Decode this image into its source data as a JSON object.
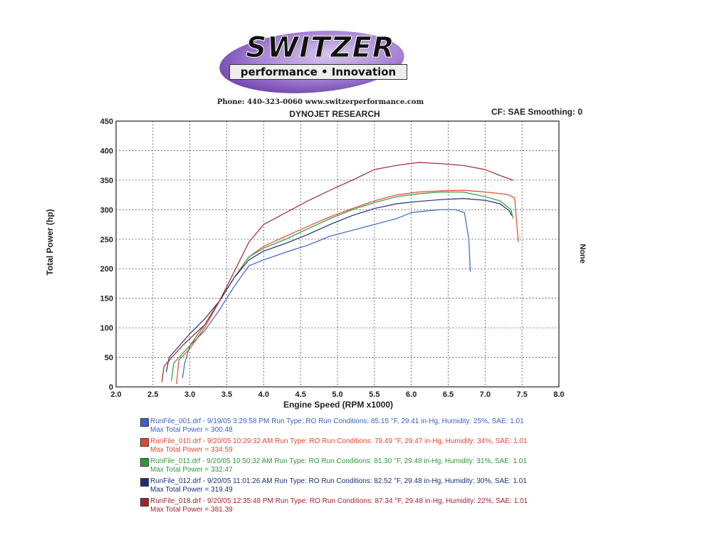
{
  "logo": {
    "main": "SWITZER",
    "sub": "performance • Innovation"
  },
  "header": {
    "contact": "Phone: 440-323-0060  www.switzerperformance.com",
    "title": "DYNOJET RESEARCH",
    "cf": "CF: SAE  Smoothing: 0",
    "right_axis_label": "None"
  },
  "colors": {
    "run_001": "#3a62c6",
    "run_010": "#e8452e",
    "run_011": "#2e9a3a",
    "run_012": "#1c2f78",
    "run_018": "#a4252a",
    "grid": "#222222"
  },
  "chart_data": {
    "type": "line",
    "title": "DYNOJET RESEARCH",
    "xlabel": "Engine Speed (RPM x1000)",
    "ylabel": "Total Power (hp)",
    "xlim": [
      2.0,
      8.0
    ],
    "ylim": [
      0,
      450
    ],
    "x_ticks": [
      "2.0",
      "2.5",
      "3.0",
      "3.5",
      "4.0",
      "4.5",
      "5.0",
      "5.5",
      "6.0",
      "6.5",
      "7.0",
      "7.5",
      "8.0"
    ],
    "y_ticks": [
      "0",
      "50",
      "100",
      "150",
      "200",
      "250",
      "300",
      "350",
      "400",
      "450"
    ],
    "grid": true,
    "series": [
      {
        "name": "RunFile_001.drf",
        "color_key": "run_001",
        "points": [
          [
            2.9,
            15
          ],
          [
            2.93,
            40
          ],
          [
            3.0,
            70
          ],
          [
            3.2,
            95
          ],
          [
            3.4,
            130
          ],
          [
            3.6,
            170
          ],
          [
            3.8,
            205
          ],
          [
            4.0,
            215
          ],
          [
            4.3,
            228
          ],
          [
            4.6,
            240
          ],
          [
            4.9,
            255
          ],
          [
            5.2,
            265
          ],
          [
            5.5,
            275
          ],
          [
            5.8,
            285
          ],
          [
            6.0,
            295
          ],
          [
            6.2,
            298
          ],
          [
            6.4,
            300
          ],
          [
            6.6,
            300
          ],
          [
            6.72,
            295
          ],
          [
            6.78,
            250
          ],
          [
            6.8,
            195
          ]
        ]
      },
      {
        "name": "RunFile_010.drf",
        "color_key": "run_010",
        "points": [
          [
            2.82,
            5
          ],
          [
            2.85,
            45
          ],
          [
            3.0,
            65
          ],
          [
            3.2,
            100
          ],
          [
            3.4,
            145
          ],
          [
            3.6,
            185
          ],
          [
            3.8,
            220
          ],
          [
            4.0,
            238
          ],
          [
            4.3,
            255
          ],
          [
            4.6,
            272
          ],
          [
            4.9,
            288
          ],
          [
            5.2,
            302
          ],
          [
            5.5,
            315
          ],
          [
            5.8,
            325
          ],
          [
            6.1,
            330
          ],
          [
            6.4,
            332
          ],
          [
            6.7,
            333
          ],
          [
            7.0,
            330
          ],
          [
            7.3,
            326
          ],
          [
            7.4,
            320
          ],
          [
            7.45,
            245
          ]
        ]
      },
      {
        "name": "RunFile_011.drf",
        "color_key": "run_011",
        "points": [
          [
            2.75,
            10
          ],
          [
            2.78,
            40
          ],
          [
            3.0,
            70
          ],
          [
            3.2,
            105
          ],
          [
            3.4,
            145
          ],
          [
            3.6,
            185
          ],
          [
            3.8,
            220
          ],
          [
            4.0,
            235
          ],
          [
            4.3,
            250
          ],
          [
            4.6,
            268
          ],
          [
            4.9,
            285
          ],
          [
            5.2,
            300
          ],
          [
            5.5,
            312
          ],
          [
            5.8,
            322
          ],
          [
            6.1,
            327
          ],
          [
            6.4,
            330
          ],
          [
            6.7,
            330
          ],
          [
            7.0,
            322
          ],
          [
            7.2,
            315
          ],
          [
            7.35,
            300
          ],
          [
            7.38,
            285
          ]
        ]
      },
      {
        "name": "RunFile_012.drf",
        "color_key": "run_012",
        "points": [
          [
            2.68,
            25
          ],
          [
            2.72,
            50
          ],
          [
            3.0,
            90
          ],
          [
            3.2,
            115
          ],
          [
            3.4,
            145
          ],
          [
            3.6,
            185
          ],
          [
            3.8,
            215
          ],
          [
            4.0,
            230
          ],
          [
            4.3,
            243
          ],
          [
            4.6,
            258
          ],
          [
            4.9,
            275
          ],
          [
            5.2,
            290
          ],
          [
            5.5,
            302
          ],
          [
            5.8,
            310
          ],
          [
            6.1,
            314
          ],
          [
            6.4,
            317
          ],
          [
            6.7,
            319
          ],
          [
            7.0,
            316
          ],
          [
            7.2,
            310
          ],
          [
            7.33,
            298
          ],
          [
            7.36,
            290
          ]
        ]
      },
      {
        "name": "RunFile_018.drf",
        "color_key": "run_018",
        "points": [
          [
            2.62,
            8
          ],
          [
            2.65,
            35
          ],
          [
            2.9,
            70
          ],
          [
            3.2,
            105
          ],
          [
            3.4,
            145
          ],
          [
            3.6,
            195
          ],
          [
            3.8,
            245
          ],
          [
            4.0,
            275
          ],
          [
            4.3,
            295
          ],
          [
            4.6,
            315
          ],
          [
            4.9,
            333
          ],
          [
            5.2,
            350
          ],
          [
            5.5,
            368
          ],
          [
            5.8,
            375
          ],
          [
            6.1,
            380
          ],
          [
            6.4,
            378
          ],
          [
            6.7,
            375
          ],
          [
            7.0,
            368
          ],
          [
            7.2,
            358
          ],
          [
            7.38,
            350
          ]
        ]
      }
    ]
  },
  "legend": [
    {
      "line1": "RunFile_001.drf - 9/19/05 3:29:58 PM  Run Type: RO  Run Conditions: 85.15 °F, 29.41 in-Hg,  Humidity:  25%, SAE: 1.01",
      "line2": "Max Total Power = 300.48",
      "color_key": "run_001"
    },
    {
      "line1": "RunFile_010.drf - 9/20/05 10:29:32 AM  Run Type: RO  Run Conditions: 79.49 °F, 29.47 in-Hg,  Humidity:  34%, SAE: 1.01",
      "line2": "Max Total Power = 334.59",
      "color_key": "run_010"
    },
    {
      "line1": "RunFile_011.drf - 9/20/05 10:50:32 AM  Run Type: RO  Run Conditions: 81.30 °F, 29.48 in-Hg,  Humidity:  31%, SAE: 1.01",
      "line2": "Max Total Power = 332.47",
      "color_key": "run_011"
    },
    {
      "line1": "RunFile_012.drf - 9/20/05 11:01:26 AM  Run Type: RO  Run Conditions: 82.52 °F, 29.48 in-Hg,  Humidity:  30%, SAE: 1.01",
      "line2": "Max Total Power = 319.49",
      "color_key": "run_012"
    },
    {
      "line1": "RunFile_018.drf - 9/20/05 12:35:48 PM  Run Type: RO  Run Conditions: 87.34 °F, 29.48 in-Hg,  Humidity:  22%, SAE: 1.01",
      "line2": "Max Total Power = 381.39",
      "color_key": "run_018"
    }
  ]
}
